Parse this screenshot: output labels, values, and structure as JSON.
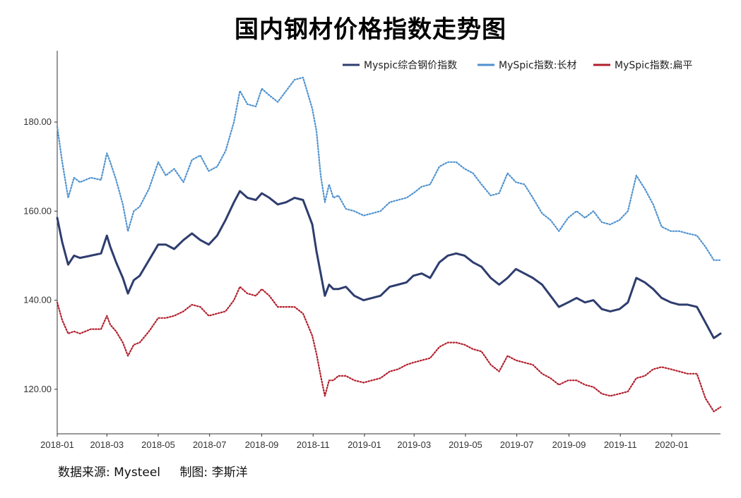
{
  "title": "国内钢材价格指数走势图",
  "footer": {
    "source": "数据来源: Mysteel",
    "author": "制图: 李斯洋"
  },
  "chart_data": {
    "type": "line",
    "title": "国内钢材价格指数走势图",
    "xlabel": "",
    "ylabel": "",
    "x_ticks": [
      "2018-01",
      "2018-03",
      "2018-05",
      "2018-07",
      "2018-09",
      "2018-11",
      "2019-01",
      "2019-03",
      "2019-05",
      "2019-07",
      "2019-09",
      "2019-11",
      "2020-01"
    ],
    "y_ticks": [
      "120.00",
      "140.00",
      "160.00",
      "180.00"
    ],
    "ylim": [
      110,
      196
    ],
    "xlim": [
      "2018-01-01",
      "2020-02-28"
    ],
    "legend_position": "top-right",
    "grid": false,
    "series": [
      {
        "name": "Myspic综合钢价指数",
        "color": "#2e3d6e",
        "style": "solid",
        "x": [
          "2018-01-01",
          "2018-01-07",
          "2018-01-14",
          "2018-01-21",
          "2018-01-28",
          "2018-02-10",
          "2018-02-22",
          "2018-03-01",
          "2018-03-05",
          "2018-03-12",
          "2018-03-20",
          "2018-03-26",
          "2018-04-02",
          "2018-04-09",
          "2018-04-20",
          "2018-05-01",
          "2018-05-10",
          "2018-05-20",
          "2018-05-31",
          "2018-06-10",
          "2018-06-20",
          "2018-06-30",
          "2018-07-10",
          "2018-07-20",
          "2018-07-30",
          "2018-08-06",
          "2018-08-15",
          "2018-08-25",
          "2018-09-01",
          "2018-09-10",
          "2018-09-20",
          "2018-09-30",
          "2018-10-10",
          "2018-10-20",
          "2018-10-31",
          "2018-11-05",
          "2018-11-10",
          "2018-11-15",
          "2018-11-20",
          "2018-11-25",
          "2018-12-01",
          "2018-12-10",
          "2018-12-20",
          "2018-12-31",
          "2019-01-10",
          "2019-01-20",
          "2019-01-31",
          "2019-02-10",
          "2019-02-20",
          "2019-02-28",
          "2019-03-10",
          "2019-03-20",
          "2019-03-31",
          "2019-04-10",
          "2019-04-20",
          "2019-04-30",
          "2019-05-10",
          "2019-05-20",
          "2019-05-31",
          "2019-06-10",
          "2019-06-20",
          "2019-06-30",
          "2019-07-10",
          "2019-07-20",
          "2019-07-31",
          "2019-08-10",
          "2019-08-20",
          "2019-08-31",
          "2019-09-10",
          "2019-09-20",
          "2019-09-30",
          "2019-10-10",
          "2019-10-20",
          "2019-10-31",
          "2019-11-10",
          "2019-11-20",
          "2019-11-30",
          "2019-12-10",
          "2019-12-20",
          "2019-12-31",
          "2020-01-10",
          "2020-01-20",
          "2020-01-31",
          "2020-02-10",
          "2020-02-20",
          "2020-02-28"
        ],
        "values": [
          158.5,
          153.0,
          148.0,
          150.0,
          149.5,
          150.0,
          150.5,
          154.5,
          152.0,
          148.5,
          145.0,
          141.5,
          144.5,
          145.5,
          149.0,
          152.5,
          152.5,
          151.5,
          153.5,
          155.0,
          153.5,
          152.5,
          154.5,
          158.0,
          162.0,
          164.5,
          163.0,
          162.5,
          164.0,
          163.0,
          161.5,
          162.0,
          163.0,
          162.5,
          157.0,
          151.0,
          146.0,
          141.0,
          143.5,
          142.5,
          142.5,
          143.0,
          141.0,
          140.0,
          140.5,
          141.0,
          143.0,
          143.5,
          144.0,
          145.5,
          146.0,
          145.0,
          148.5,
          150.0,
          150.5,
          150.0,
          148.5,
          147.5,
          145.0,
          143.5,
          145.0,
          147.0,
          146.0,
          145.0,
          143.5,
          141.0,
          138.5,
          139.5,
          140.5,
          139.5,
          140.0,
          138.0,
          137.5,
          138.0,
          139.5,
          145.0,
          144.0,
          142.5,
          140.5,
          139.5,
          139.0,
          139.0,
          138.5,
          135.0,
          131.5,
          132.5
        ]
      },
      {
        "name": "MySpic指数:长材",
        "color": "#4f92cf",
        "style": "dotted",
        "x": [
          "2018-01-01",
          "2018-01-07",
          "2018-01-14",
          "2018-01-21",
          "2018-01-28",
          "2018-02-10",
          "2018-02-22",
          "2018-03-01",
          "2018-03-05",
          "2018-03-12",
          "2018-03-20",
          "2018-03-26",
          "2018-04-02",
          "2018-04-09",
          "2018-04-20",
          "2018-05-01",
          "2018-05-10",
          "2018-05-20",
          "2018-05-31",
          "2018-06-10",
          "2018-06-20",
          "2018-06-30",
          "2018-07-10",
          "2018-07-20",
          "2018-07-30",
          "2018-08-06",
          "2018-08-15",
          "2018-08-25",
          "2018-09-01",
          "2018-09-10",
          "2018-09-20",
          "2018-09-30",
          "2018-10-10",
          "2018-10-20",
          "2018-10-31",
          "2018-11-05",
          "2018-11-10",
          "2018-11-15",
          "2018-11-20",
          "2018-11-25",
          "2018-12-01",
          "2018-12-10",
          "2018-12-20",
          "2018-12-31",
          "2019-01-10",
          "2019-01-20",
          "2019-01-31",
          "2019-02-10",
          "2019-02-20",
          "2019-02-28",
          "2019-03-10",
          "2019-03-20",
          "2019-03-31",
          "2019-04-10",
          "2019-04-20",
          "2019-04-30",
          "2019-05-10",
          "2019-05-20",
          "2019-05-31",
          "2019-06-10",
          "2019-06-20",
          "2019-06-30",
          "2019-07-10",
          "2019-07-20",
          "2019-07-31",
          "2019-08-10",
          "2019-08-20",
          "2019-08-31",
          "2019-09-10",
          "2019-09-20",
          "2019-09-30",
          "2019-10-10",
          "2019-10-20",
          "2019-10-31",
          "2019-11-10",
          "2019-11-20",
          "2019-11-30",
          "2019-12-10",
          "2019-12-20",
          "2019-12-31",
          "2020-01-10",
          "2020-01-20",
          "2020-01-31",
          "2020-02-10",
          "2020-02-20",
          "2020-02-28"
        ],
        "values": [
          179.0,
          171.0,
          163.0,
          167.5,
          166.5,
          167.5,
          167.0,
          173.0,
          171.0,
          167.0,
          161.5,
          155.5,
          160.0,
          161.0,
          165.0,
          171.0,
          168.0,
          169.5,
          166.5,
          171.5,
          172.5,
          169.0,
          170.0,
          173.5,
          180.0,
          187.0,
          184.0,
          183.5,
          187.5,
          186.0,
          184.5,
          187.0,
          189.5,
          190.0,
          183.0,
          178.0,
          168.0,
          162.0,
          166.0,
          163.0,
          163.5,
          160.5,
          160.0,
          159.0,
          159.5,
          160.0,
          162.0,
          162.5,
          163.0,
          164.0,
          165.5,
          166.0,
          170.0,
          171.0,
          171.0,
          169.5,
          168.5,
          166.0,
          163.5,
          164.0,
          168.5,
          166.5,
          166.0,
          163.0,
          159.5,
          158.0,
          155.5,
          158.5,
          160.0,
          158.5,
          160.0,
          157.5,
          157.0,
          158.0,
          160.0,
          168.0,
          165.0,
          161.5,
          156.5,
          155.5,
          155.5,
          155.0,
          154.5,
          152.0,
          149.0,
          149.0
        ]
      },
      {
        "name": "MySpic指数:扁平",
        "color": "#b21f2d",
        "style": "dotted",
        "x": [
          "2018-01-01",
          "2018-01-07",
          "2018-01-14",
          "2018-01-21",
          "2018-01-28",
          "2018-02-10",
          "2018-02-22",
          "2018-03-01",
          "2018-03-05",
          "2018-03-12",
          "2018-03-20",
          "2018-03-26",
          "2018-04-02",
          "2018-04-09",
          "2018-04-20",
          "2018-05-01",
          "2018-05-10",
          "2018-05-20",
          "2018-05-31",
          "2018-06-10",
          "2018-06-20",
          "2018-06-30",
          "2018-07-10",
          "2018-07-20",
          "2018-07-30",
          "2018-08-06",
          "2018-08-15",
          "2018-08-25",
          "2018-09-01",
          "2018-09-10",
          "2018-09-20",
          "2018-09-30",
          "2018-10-10",
          "2018-10-20",
          "2018-10-31",
          "2018-11-05",
          "2018-11-10",
          "2018-11-15",
          "2018-11-20",
          "2018-11-25",
          "2018-12-01",
          "2018-12-10",
          "2018-12-20",
          "2018-12-31",
          "2019-01-10",
          "2019-01-20",
          "2019-01-31",
          "2019-02-10",
          "2019-02-20",
          "2019-02-28",
          "2019-03-10",
          "2019-03-20",
          "2019-03-31",
          "2019-04-10",
          "2019-04-20",
          "2019-04-30",
          "2019-05-10",
          "2019-05-20",
          "2019-05-31",
          "2019-06-10",
          "2019-06-20",
          "2019-06-30",
          "2019-07-10",
          "2019-07-20",
          "2019-07-31",
          "2019-08-10",
          "2019-08-20",
          "2019-08-31",
          "2019-09-10",
          "2019-09-20",
          "2019-09-30",
          "2019-10-10",
          "2019-10-20",
          "2019-10-31",
          "2019-11-10",
          "2019-11-20",
          "2019-11-30",
          "2019-12-10",
          "2019-12-20",
          "2019-12-31",
          "2020-01-10",
          "2020-01-20",
          "2020-01-31",
          "2020-02-10",
          "2020-02-20",
          "2020-02-28"
        ],
        "values": [
          139.5,
          135.5,
          132.5,
          133.0,
          132.5,
          133.5,
          133.5,
          136.5,
          134.5,
          133.0,
          130.5,
          127.5,
          130.0,
          130.5,
          133.0,
          136.0,
          136.0,
          136.5,
          137.5,
          139.0,
          138.5,
          136.5,
          137.0,
          137.5,
          140.0,
          143.0,
          141.5,
          141.0,
          142.5,
          141.0,
          138.5,
          138.5,
          138.5,
          137.0,
          132.0,
          128.0,
          123.0,
          118.5,
          122.0,
          122.0,
          123.0,
          123.0,
          122.0,
          121.5,
          122.0,
          122.5,
          124.0,
          124.5,
          125.5,
          126.0,
          126.5,
          127.0,
          129.5,
          130.5,
          130.5,
          130.0,
          129.0,
          128.5,
          125.5,
          124.0,
          127.5,
          126.5,
          126.0,
          125.5,
          123.5,
          122.5,
          121.0,
          122.0,
          122.0,
          121.0,
          120.5,
          119.0,
          118.5,
          119.0,
          119.5,
          122.5,
          123.0,
          124.5,
          125.0,
          124.5,
          124.0,
          123.5,
          123.5,
          118.0,
          115.0,
          116.0
        ]
      }
    ]
  }
}
